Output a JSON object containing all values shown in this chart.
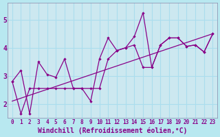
{
  "xlabel": "Windchill (Refroidissement éolien,°C)",
  "xlim": [
    -0.5,
    23.5
  ],
  "ylim": [
    1.5,
    5.6
  ],
  "yticks": [
    2,
    3,
    4,
    5
  ],
  "xticks": [
    0,
    1,
    2,
    3,
    4,
    5,
    6,
    7,
    8,
    9,
    10,
    11,
    12,
    13,
    14,
    15,
    16,
    17,
    18,
    19,
    20,
    21,
    22,
    23
  ],
  "bg_color": "#b8e8f0",
  "plot_bg_color": "#cce8f0",
  "line_color": "#880088",
  "grid_color": "#aaddee",
  "line1_x": [
    0,
    1,
    2,
    3,
    4,
    5,
    6,
    7,
    8,
    9,
    10,
    11,
    12,
    13,
    14,
    15,
    16,
    17,
    18,
    19,
    20,
    21,
    22,
    23
  ],
  "line1_y": [
    2.8,
    3.2,
    1.65,
    3.5,
    3.05,
    2.95,
    3.6,
    2.55,
    2.55,
    2.1,
    3.6,
    4.35,
    3.9,
    4.0,
    4.4,
    5.25,
    3.3,
    4.1,
    4.35,
    4.35,
    4.05,
    4.1,
    3.85,
    4.5
  ],
  "line2_x": [
    0,
    1,
    2,
    3,
    4,
    5,
    6,
    7,
    8,
    9,
    10,
    11,
    12,
    13,
    14,
    15,
    16,
    17,
    18,
    19,
    20,
    21,
    22,
    23
  ],
  "line2_y": [
    2.8,
    1.65,
    2.55,
    2.55,
    2.55,
    2.55,
    2.55,
    2.55,
    2.55,
    2.55,
    2.55,
    3.6,
    3.9,
    4.0,
    4.1,
    3.3,
    3.3,
    4.1,
    4.35,
    4.35,
    4.05,
    4.1,
    3.85,
    4.5
  ],
  "trend_x": [
    0,
    23
  ],
  "trend_y": [
    2.1,
    4.5
  ],
  "font_size_xlabel": 7,
  "font_size_tick": 7
}
